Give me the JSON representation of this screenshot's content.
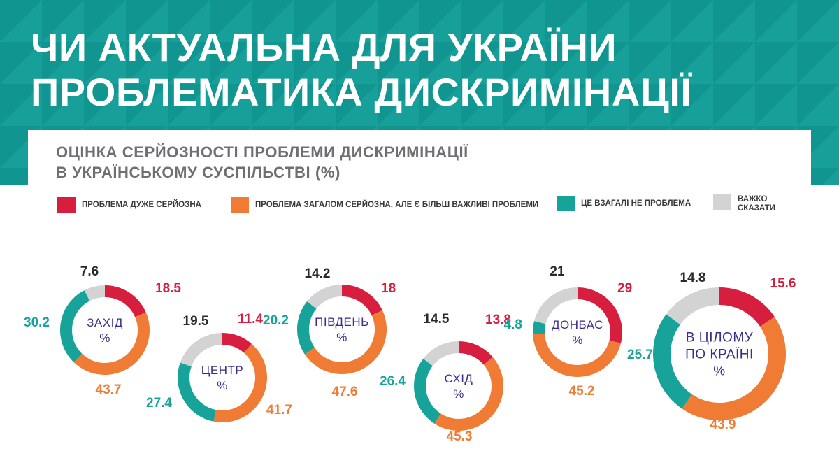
{
  "title": {
    "line1": "ЧИ АКТУАЛЬНА ДЛЯ УКРАЇНИ",
    "line2": "ПРОБЛЕМАТИКА ДИСКРИМІНАЦІЇ"
  },
  "subtitle": {
    "line1": "ОЦІНКА СЕРЙОЗНОСТІ ПРОБЛЕМИ ДИСКРИМІНАЦІЇ",
    "line2": "В УКРАЇНСЬКОМУ СУСПІЛЬСТВІ (%)"
  },
  "colors": {
    "header_teal": "#17a09a",
    "header_dark": "#0d8d88",
    "header_light": "#2bb3ab",
    "very_serious": "#d81e3e",
    "generally_serious": "#ef7b35",
    "not_a_problem": "#18a39a",
    "hard_to_say": "#d3d3d3",
    "region_label": "#3a2d8c"
  },
  "legend": [
    {
      "label": "ПРОБЛЕМА ДУЖЕ СЕРЙОЗНА",
      "color": "#d81e3e"
    },
    {
      "label": "ПРОБЛЕМА ЗАГАЛОМ СЕРЙОЗНА, АЛЕ Є БІЛЬШ ВАЖЛИВІ ПРОБЛЕМИ",
      "color": "#ef7b35"
    },
    {
      "label": "ЦЕ ВЗАГАЛІ НЕ ПРОБЛЕМА",
      "color": "#18a39a"
    },
    {
      "label": "ВАЖКО\nСКАЗАТИ",
      "color": "#d3d3d3"
    }
  ],
  "chart_data": {
    "type": "pie",
    "variant": "donut",
    "unit": "%",
    "categories": [
      "ПРОБЛЕМА ДУЖЕ СЕРЙОЗНА",
      "ПРОБЛЕМА ЗАГАЛОМ СЕРЙОЗНА, АЛЕ Є БІЛЬШ ВАЖЛИВІ ПРОБЛЕМИ",
      "ЦЕ ВЗАГАЛІ НЕ ПРОБЛЕМА",
      "ВАЖКО СКАЗАТИ"
    ],
    "colors": [
      "#d81e3e",
      "#ef7b35",
      "#18a39a",
      "#d3d3d3"
    ],
    "series": [
      {
        "name": "ЗАХІД",
        "values": [
          18.5,
          43.7,
          30.2,
          7.6
        ]
      },
      {
        "name": "ЦЕНТР",
        "values": [
          11.4,
          41.7,
          27.4,
          19.5
        ]
      },
      {
        "name": "ПІВДЕНЬ",
        "values": [
          18,
          47.6,
          20.2,
          14.2
        ]
      },
      {
        "name": "СХІД",
        "values": [
          13.8,
          45.3,
          26.4,
          14.5
        ]
      },
      {
        "name": "ДОНБАС",
        "values": [
          29,
          45.2,
          4.8,
          21
        ]
      },
      {
        "name": "В ЦІЛОМУ ПО КРАЇНІ",
        "values": [
          15.6,
          43.9,
          25.7,
          14.8
        ]
      }
    ],
    "value_labels": [
      [
        "18.5",
        "43.7",
        "30.2",
        "7.6"
      ],
      [
        "11.4",
        "41.7",
        "27.4",
        "19.5"
      ],
      [
        "18",
        "47.6",
        "20.2",
        "14.2"
      ],
      [
        "13.8",
        "45.3",
        "26.4",
        "14.5"
      ],
      [
        "29",
        "45.2",
        "4.8",
        "21"
      ],
      [
        "15.6",
        "43.9",
        "25.7",
        "14.8"
      ]
    ],
    "center_labels": [
      [
        "ЗАХІД",
        "%"
      ],
      [
        "ЦЕНТР",
        "%"
      ],
      [
        "ПІВДЕНЬ",
        "%"
      ],
      [
        "СХІД",
        "%"
      ],
      [
        "ДОНБАС",
        "%"
      ],
      [
        "В ЦІЛОМУ",
        "ПО КРАЇНІ",
        "%"
      ]
    ]
  }
}
